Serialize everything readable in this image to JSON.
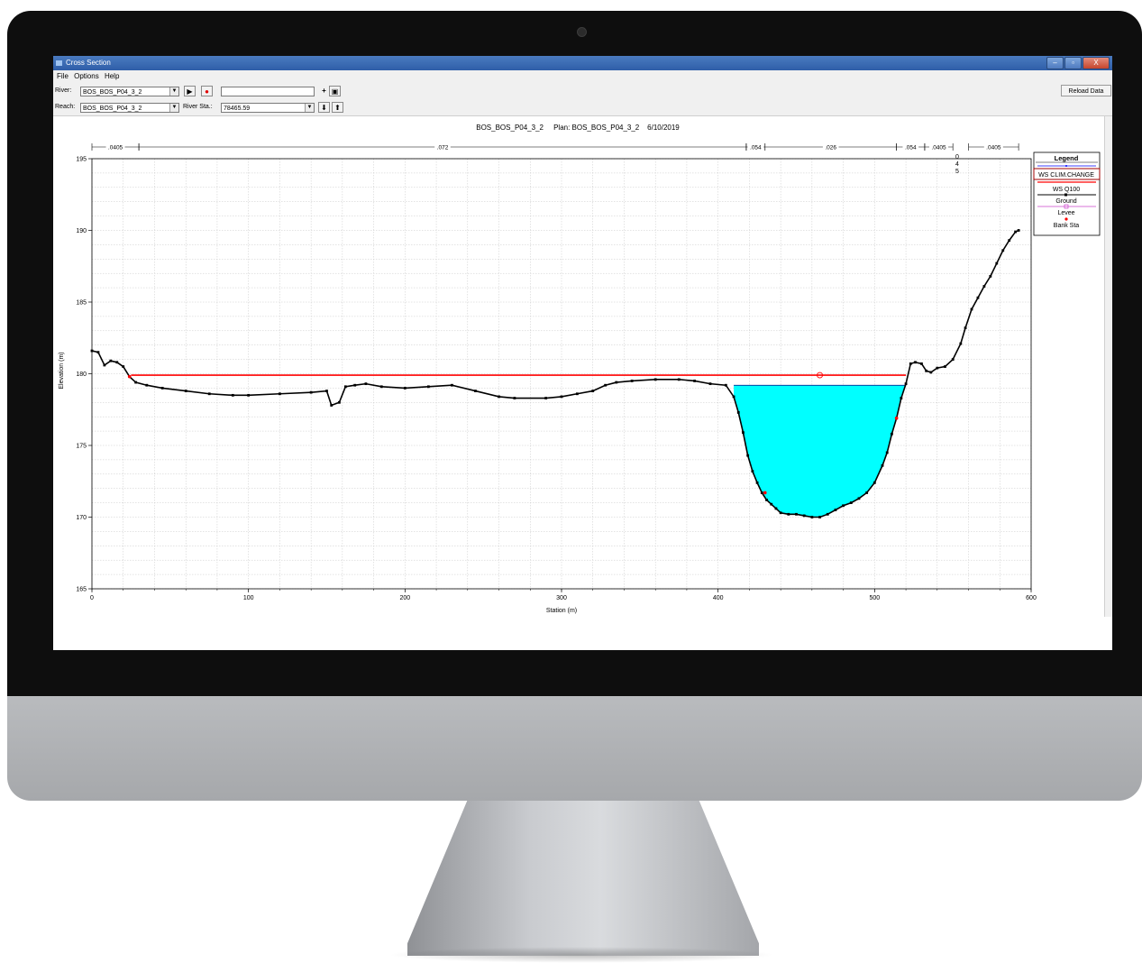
{
  "window": {
    "title": "Cross Section",
    "min_label": "–",
    "max_label": "▫",
    "close_label": "X"
  },
  "menu": [
    "File",
    "Options",
    "Help"
  ],
  "toolbar": {
    "river_label": "River:",
    "river_value": "BOS_BOS_P04_3_2",
    "reach_label": "Reach:",
    "reach_value": "BOS_BOS_P04_3_2",
    "river_sta_label": "River Sta.:",
    "river_sta_value": "78465.59",
    "reload_label": "Reload Data"
  },
  "colors": {
    "water": "#00ffff",
    "ws_clim": "#ff0000",
    "ground": "#000000",
    "bank": "#ff0000",
    "levee": "#cc44cc"
  },
  "chart_data": {
    "type": "line",
    "title": "BOS_BOS_P04_3_2     Plan: BOS_BOS_P04_3_2    6/10/2019",
    "xlabel": "Station (m)",
    "ylabel": "Elevation (m)",
    "xlim": [
      0,
      600
    ],
    "ylim": [
      165,
      195
    ],
    "xticks": [
      0,
      100,
      200,
      300,
      400,
      500,
      600
    ],
    "yticks": [
      165,
      170,
      175,
      180,
      185,
      190,
      195
    ],
    "grid": true,
    "manning_n": [
      {
        "label": ".0405",
        "from": 0,
        "to": 30
      },
      {
        "label": ".072",
        "from": 30,
        "to": 418
      },
      {
        "label": ".054",
        "from": 418,
        "to": 430
      },
      {
        "label": ".026",
        "from": 430,
        "to": 514
      },
      {
        "label": ".054",
        "from": 514,
        "to": 532
      },
      {
        "label": ".0405",
        "from": 532,
        "to": 550
      },
      {
        "label": ".0405",
        "from": 560,
        "to": 592
      }
    ],
    "annotation": [
      "0",
      "4",
      "5"
    ],
    "legend": {
      "title": "Legend",
      "entries": [
        "WS CLIM.CHANGE",
        "WS Q100",
        "Ground",
        "Levee",
        "Bank Sta"
      ],
      "placement": "right"
    },
    "series": [
      {
        "name": "WS CLIM.CHANGE",
        "x": [
          25,
          520
        ],
        "y": [
          179.9,
          179.9
        ]
      },
      {
        "name": "WS Q100",
        "x": [
          410,
          520
        ],
        "y": [
          179.2,
          179.2
        ]
      },
      {
        "name": "Ground",
        "x": [
          0,
          4,
          8,
          12,
          16,
          20,
          24,
          28,
          35,
          45,
          60,
          75,
          90,
          100,
          120,
          140,
          150,
          153,
          158,
          162,
          168,
          175,
          185,
          200,
          215,
          230,
          245,
          260,
          270,
          290,
          300,
          310,
          320,
          328,
          335,
          345,
          360,
          375,
          385,
          395,
          405,
          410,
          413,
          416,
          419,
          422,
          425,
          428,
          431,
          434,
          437,
          440,
          445,
          450,
          455,
          460,
          465,
          470,
          475,
          480,
          485,
          490,
          495,
          500,
          505,
          508,
          511,
          514,
          517,
          520,
          523,
          526,
          530,
          533,
          536,
          540,
          545,
          550,
          555,
          558,
          562,
          566,
          570,
          574,
          578,
          582,
          586,
          590,
          592
        ],
        "y": [
          181.6,
          181.5,
          180.6,
          180.9,
          180.8,
          180.5,
          179.8,
          179.4,
          179.2,
          179.0,
          178.8,
          178.6,
          178.5,
          178.5,
          178.6,
          178.7,
          178.8,
          177.8,
          178.0,
          179.1,
          179.2,
          179.3,
          179.1,
          179.0,
          179.1,
          179.2,
          178.8,
          178.4,
          178.3,
          178.3,
          178.4,
          178.6,
          178.8,
          179.2,
          179.4,
          179.5,
          179.6,
          179.6,
          179.5,
          179.3,
          179.2,
          178.4,
          177.3,
          175.9,
          174.3,
          173.2,
          172.4,
          171.7,
          171.2,
          170.9,
          170.6,
          170.3,
          170.2,
          170.2,
          170.1,
          170.0,
          170.0,
          170.2,
          170.5,
          170.8,
          171.0,
          171.3,
          171.7,
          172.4,
          173.6,
          174.5,
          175.8,
          176.9,
          178.3,
          179.3,
          180.7,
          180.8,
          180.7,
          180.2,
          180.1,
          180.4,
          180.5,
          181.0,
          182.1,
          183.2,
          184.5,
          185.3,
          186.1,
          186.8,
          187.7,
          188.6,
          189.3,
          189.9,
          190.0
        ]
      },
      {
        "name": "Bank Sta",
        "x": [
          24,
          430,
          514
        ],
        "y": [
          179.8,
          171.7,
          176.9
        ]
      }
    ]
  }
}
